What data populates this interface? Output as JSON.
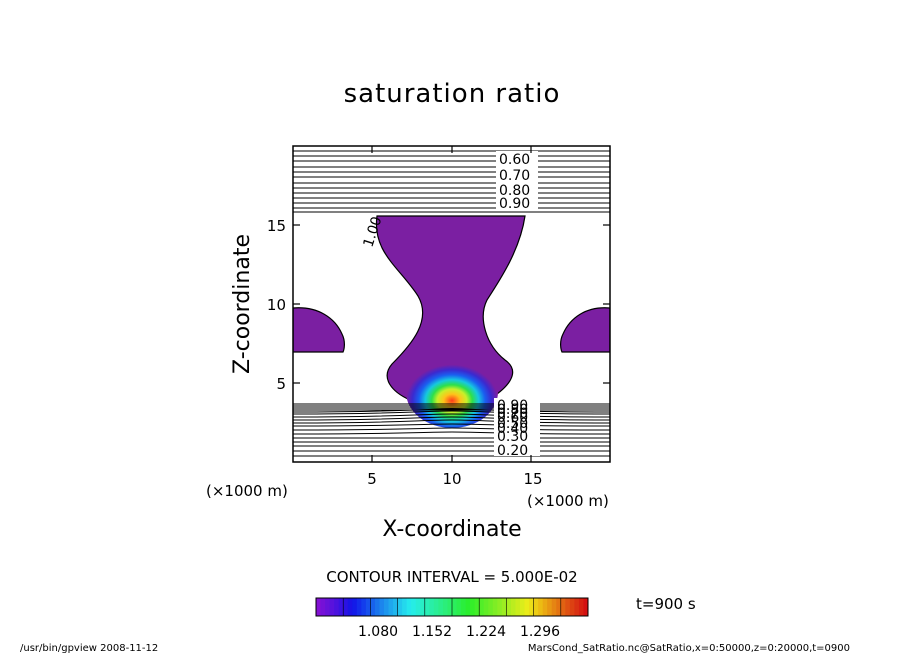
{
  "chart_data": {
    "type": "contour",
    "title": "saturation ratio",
    "xlabel": "X-coordinate",
    "ylabel": "Z-coordinate",
    "x_unit": "(×1000 m)",
    "z_unit": "(×1000 m)",
    "xlim": [
      0,
      20
    ],
    "zlim": [
      0,
      20
    ],
    "x_ticks": [
      "5",
      "10",
      "15"
    ],
    "z_ticks": [
      "5",
      "10",
      "15"
    ],
    "contour_interval": "CONTOUR INTERVAL = 5.000E-02",
    "time": "t=900 s",
    "contour_labels_upper": [
      "0.60",
      "0.70",
      "0.80",
      "0.90"
    ],
    "contour_label_cloud": "1.00",
    "contour_labels_lower": [
      "0.90",
      "0.80",
      "0.70",
      "0.60",
      "0.50",
      "0.40",
      "0.30",
      "0.20"
    ],
    "colorbar_ticks": [
      "1.080",
      "1.152",
      "1.224",
      "1.296"
    ],
    "fill_color": "#7b1fa2"
  },
  "footer": {
    "left": "/usr/bin/gpview   2008-11-12",
    "right": "MarsCond_SatRatio.nc@SatRatio,x=0:50000,z=0:20000,t=0900"
  }
}
